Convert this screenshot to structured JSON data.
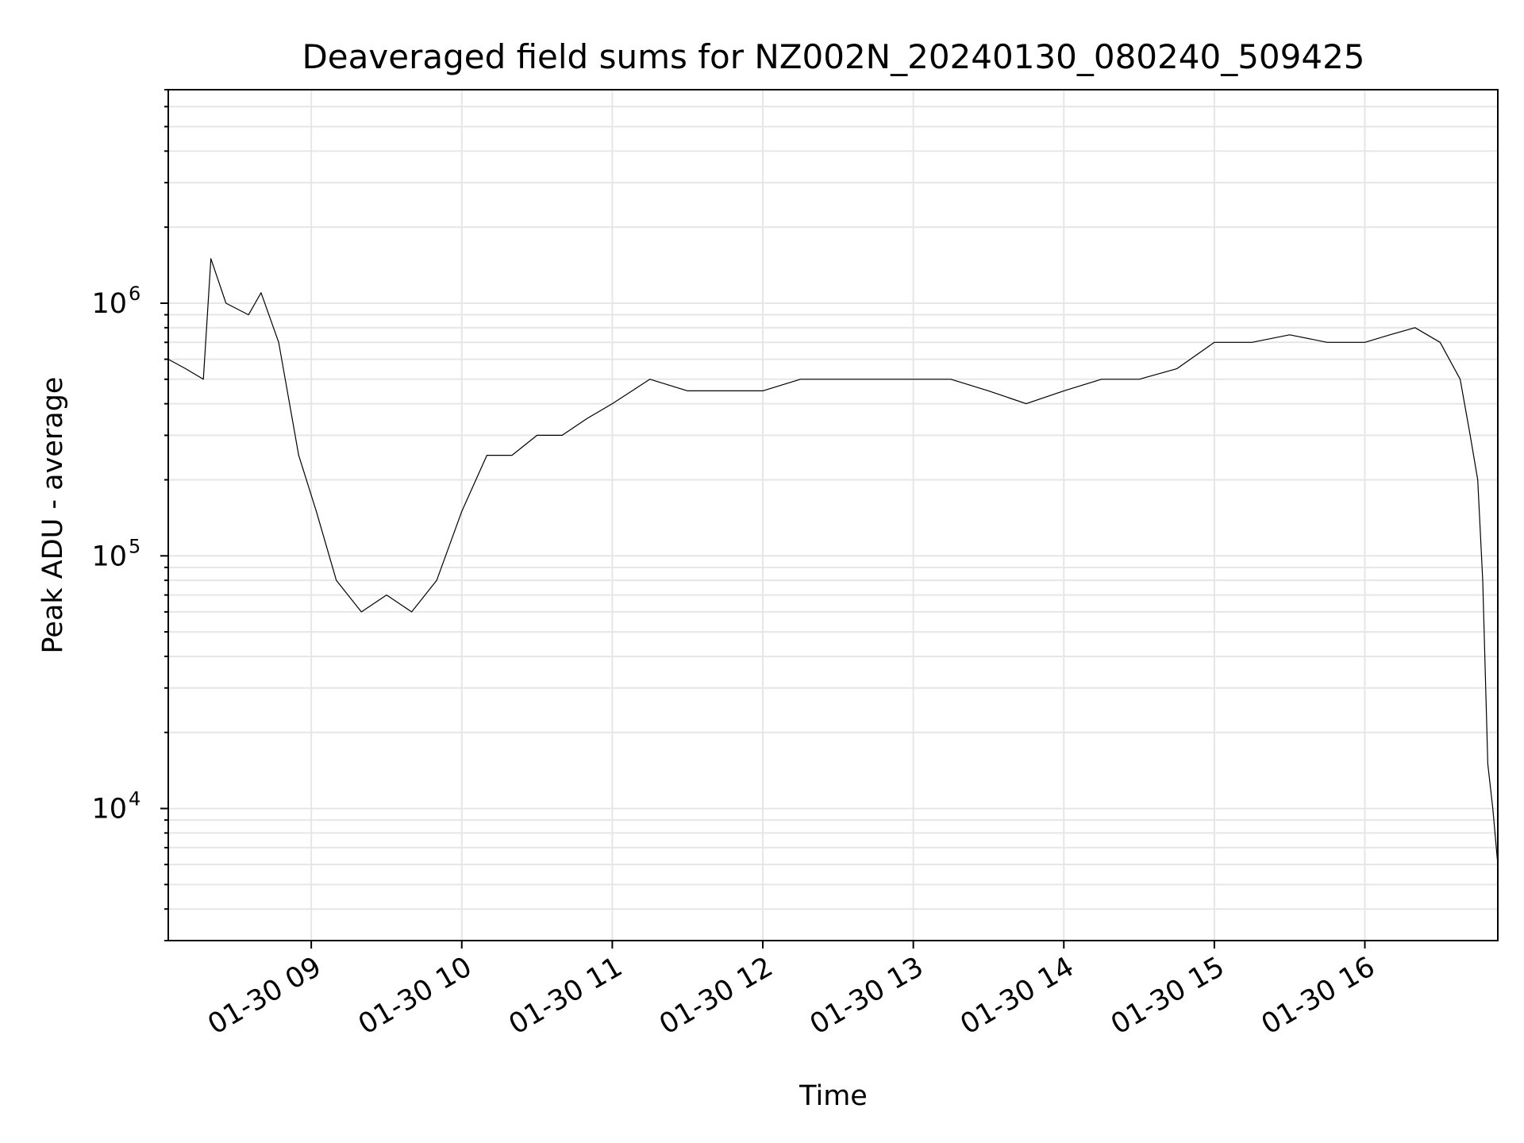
{
  "chart_data": {
    "type": "line",
    "title": "Deaveraged field sums for NZ002N_20240130_080240_509425",
    "xlabel": "Time",
    "ylabel": "Peak ADU - average",
    "xlim": [
      "2024-01-30 08:03",
      "2024-01-30 16:53"
    ],
    "ylim": [
      3000,
      7000000
    ],
    "yscale": "log",
    "grid": true,
    "line_color": "#000000",
    "x_ticks": [
      {
        "value": "2024-01-30 09:00",
        "label": "01-30 09"
      },
      {
        "value": "2024-01-30 10:00",
        "label": "01-30 10"
      },
      {
        "value": "2024-01-30 11:00",
        "label": "01-30 11"
      },
      {
        "value": "2024-01-30 12:00",
        "label": "01-30 12"
      },
      {
        "value": "2024-01-30 13:00",
        "label": "01-30 13"
      },
      {
        "value": "2024-01-30 14:00",
        "label": "01-30 14"
      },
      {
        "value": "2024-01-30 15:00",
        "label": "01-30 15"
      },
      {
        "value": "2024-01-30 16:00",
        "label": "01-30 16"
      }
    ],
    "y_ticks": [
      {
        "value": 10000,
        "base": "10",
        "exp": "4"
      },
      {
        "value": 100000,
        "base": "10",
        "exp": "5"
      },
      {
        "value": 1000000,
        "base": "10",
        "exp": "6"
      }
    ],
    "series": [
      {
        "x": [
          "2024-01-30 08:03",
          "2024-01-30 08:10",
          "2024-01-30 08:17",
          "2024-01-30 08:20",
          "2024-01-30 08:26",
          "2024-01-30 08:35",
          "2024-01-30 08:40",
          "2024-01-30 08:47",
          "2024-01-30 08:55",
          "2024-01-30 09:02",
          "2024-01-30 09:10",
          "2024-01-30 09:20",
          "2024-01-30 09:30",
          "2024-01-30 09:40",
          "2024-01-30 09:50",
          "2024-01-30 10:00",
          "2024-01-30 10:10",
          "2024-01-30 10:20",
          "2024-01-30 10:30",
          "2024-01-30 10:40",
          "2024-01-30 10:50",
          "2024-01-30 11:00",
          "2024-01-30 11:15",
          "2024-01-30 11:30",
          "2024-01-30 11:45",
          "2024-01-30 12:00",
          "2024-01-30 12:15",
          "2024-01-30 12:30",
          "2024-01-30 12:45",
          "2024-01-30 13:00",
          "2024-01-30 13:15",
          "2024-01-30 13:30",
          "2024-01-30 13:45",
          "2024-01-30 14:00",
          "2024-01-30 14:15",
          "2024-01-30 14:30",
          "2024-01-30 14:45",
          "2024-01-30 15:00",
          "2024-01-30 15:15",
          "2024-01-30 15:30",
          "2024-01-30 15:45",
          "2024-01-30 16:00",
          "2024-01-30 16:10",
          "2024-01-30 16:20",
          "2024-01-30 16:30",
          "2024-01-30 16:38",
          "2024-01-30 16:42",
          "2024-01-30 16:45",
          "2024-01-30 16:47",
          "2024-01-30 16:49",
          "2024-01-30 16:51",
          "2024-01-30 16:53"
        ],
        "y": [
          600000,
          550000,
          500000,
          1500000,
          1000000,
          900000,
          1100000,
          700000,
          250000,
          150000,
          80000,
          60000,
          70000,
          60000,
          80000,
          150000,
          250000,
          250000,
          300000,
          300000,
          350000,
          400000,
          500000,
          450000,
          450000,
          450000,
          500000,
          500000,
          500000,
          500000,
          500000,
          450000,
          400000,
          450000,
          500000,
          500000,
          550000,
          700000,
          700000,
          750000,
          700000,
          700000,
          750000,
          800000,
          700000,
          500000,
          300000,
          200000,
          80000,
          15000,
          10000,
          6000
        ]
      }
    ]
  }
}
